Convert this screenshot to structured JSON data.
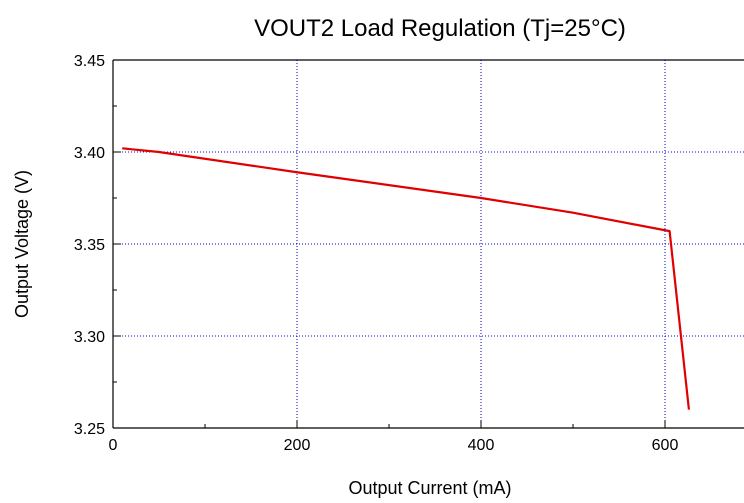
{
  "chart_data": {
    "type": "line",
    "title": "VOUT2 Load Regulation (Tj=25°C)",
    "x_label": "Output Current (mA)",
    "y_label": "Output Voltage (V)",
    "series": [
      {
        "name": "VOUT2",
        "color": "#e00000",
        "x": [
          10,
          50,
          200,
          400,
          500,
          605,
          626
        ],
        "values": [
          3.402,
          3.4,
          3.389,
          3.375,
          3.367,
          3.357,
          3.26
        ]
      }
    ],
    "xlim": [
      0,
      700
    ],
    "xticks": [
      0,
      200,
      400,
      600
    ],
    "ylim": [
      3.25,
      3.45
    ],
    "yticks": [
      {
        "value": 3.25,
        "label": "3.25"
      },
      {
        "value": 3.3,
        "label": "3.30"
      },
      {
        "value": 3.35,
        "label": "3.35"
      },
      {
        "value": 3.4,
        "label": "3.40"
      },
      {
        "value": 3.45,
        "label": "3.45"
      }
    ],
    "grid": true,
    "grid_color": "#0000cc"
  }
}
